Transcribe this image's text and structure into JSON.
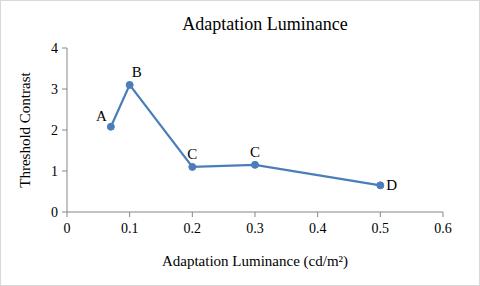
{
  "chart_data": {
    "type": "line",
    "title": "Adaptation Luminance",
    "x_label": "Adaptation Luminance (cd/m²)",
    "y_label": "Threshold Contrast",
    "x": [
      0.07,
      0.1,
      0.2,
      0.3,
      0.5
    ],
    "series": [
      {
        "name": "Threshold Contrast",
        "color": "#4a7ebb",
        "marker": "circle",
        "line_style": "solid",
        "values": [
          2.08,
          3.1,
          1.1,
          1.15,
          0.65
        ],
        "point_labels": [
          "A",
          "B",
          "C",
          "C",
          "D"
        ]
      }
    ],
    "xlim": [
      0,
      0.6
    ],
    "xticks": [
      0,
      0.1,
      0.2,
      0.3,
      0.4,
      0.5,
      0.6
    ],
    "ylim": [
      0,
      4
    ],
    "yticks": [
      0,
      1,
      2,
      3,
      4
    ],
    "grid": false
  }
}
